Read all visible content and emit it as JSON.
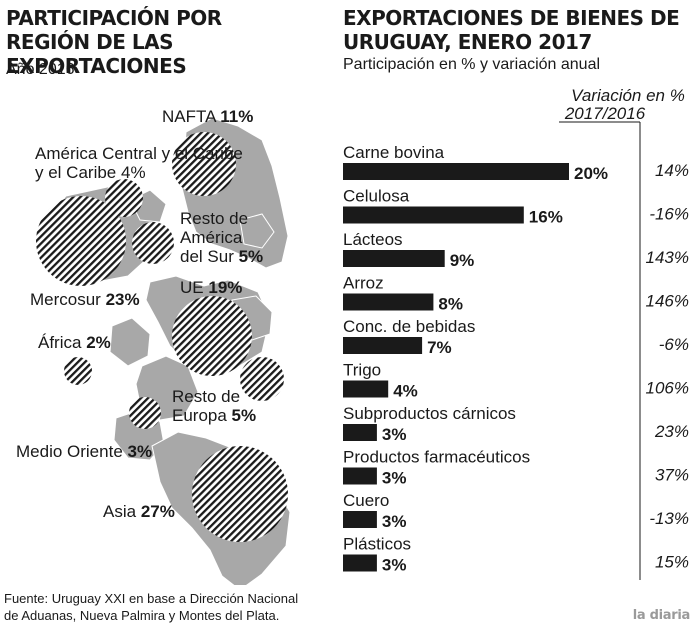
{
  "left_panel": {
    "title": "PARTICIPACIÓN POR REGIÓN DE LAS EXPORTACIONES",
    "subtitle": "Año 2016"
  },
  "right_panel": {
    "title": "EXPORTACIONES DE BIENES DE URUGUAY, ENERO 2017",
    "subtitle": "Participación en % y variación anual",
    "variation_header": [
      "Variación en %",
      "2017/2016"
    ]
  },
  "chart_data": [
    {
      "type": "bubble-map",
      "title": "PARTICIPACIÓN POR REGIÓN DE LAS EXPORTACIONES",
      "subtitle": "Año 2016",
      "regions": [
        {
          "name": "NAFTA",
          "value": 11,
          "value_label": "11%"
        },
        {
          "name": "América Central y el Caribe",
          "value": 4,
          "value_label": "4%"
        },
        {
          "name": "Resto de América del Sur",
          "value": 5,
          "value_label": "5%"
        },
        {
          "name": "Mercosur",
          "value": 23,
          "value_label": "23%"
        },
        {
          "name": "UE",
          "value": 19,
          "value_label": "19%"
        },
        {
          "name": "África",
          "value": 2,
          "value_label": "2%"
        },
        {
          "name": "Resto de Europa",
          "value": 5,
          "value_label": "5%"
        },
        {
          "name": "Medio Oriente",
          "value": 3,
          "value_label": "3%"
        },
        {
          "name": "Asia",
          "value": 27,
          "value_label": "27%"
        }
      ]
    },
    {
      "type": "bar",
      "orientation": "horizontal",
      "title": "EXPORTACIONES DE BIENES DE URUGUAY, ENERO 2017",
      "subtitle": "Participación en % y variación anual",
      "categories": [
        "Carne bovina",
        "Celulosa",
        "Lácteos",
        "Arroz",
        "Conc. de bebidas",
        "Trigo",
        "Subproductos cárnicos",
        "Productos farmacéuticos",
        "Cuero",
        "Plásticos"
      ],
      "values": [
        20,
        16,
        9,
        8,
        7,
        4,
        3,
        3,
        3,
        3
      ],
      "value_labels": [
        "20%",
        "16%",
        "9%",
        "8%",
        "7%",
        "4%",
        "3%",
        "3%",
        "3%",
        "3%"
      ],
      "variation": [
        14,
        -16,
        143,
        146,
        -6,
        106,
        23,
        37,
        -13,
        15
      ],
      "variation_labels": [
        "14%",
        "-16%",
        "143%",
        "146%",
        "-6%",
        "106%",
        "23%",
        "37%",
        "-13%",
        "15%"
      ]
    }
  ],
  "footer": {
    "source_line1": "Fuente: Uruguay XXI en base a Dirección Nacional",
    "source_line2": "de Aduanas, Nueva Palmira y Montes del Plata.",
    "logo": "la diaria"
  },
  "colors": {
    "bar": "#1a1a1a",
    "land": "#a8a8a8",
    "text": "#1a1a1a",
    "logo": "#9a9a9a"
  }
}
